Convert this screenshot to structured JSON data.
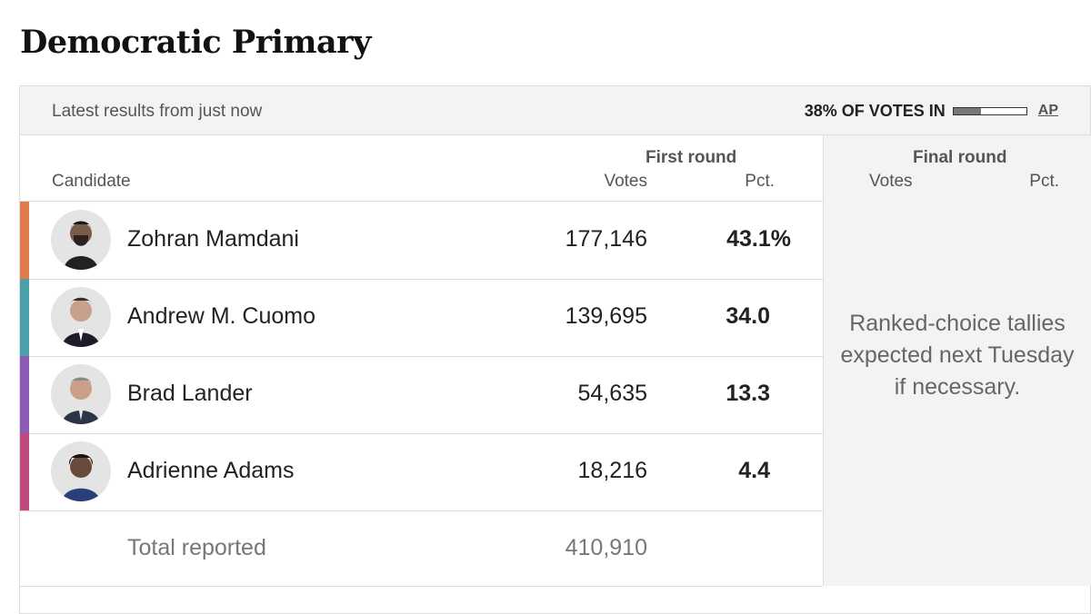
{
  "title": "Democratic Primary",
  "status": {
    "latest": "Latest results from just now",
    "votes_in": "38% OF VOTES IN",
    "votes_in_fraction": 0.38,
    "source": "AP"
  },
  "headers": {
    "candidate": "Candidate",
    "first_round": "First round",
    "final_round": "Final round",
    "votes": "Votes",
    "pct": "Pct."
  },
  "candidates": [
    {
      "name": "Zohran Mamdani",
      "votes": "177,146",
      "pct": "43.1%",
      "color": "#e07b4a"
    },
    {
      "name": "Andrew M. Cuomo",
      "votes": "139,695",
      "pct": "34.0",
      "color": "#4a9fa8"
    },
    {
      "name": "Brad Lander",
      "votes": "54,635",
      "pct": "13.3",
      "color": "#8e5bb8"
    },
    {
      "name": "Adrienne Adams",
      "votes": "18,216",
      "pct": "4.4",
      "color": "#c04a7e"
    }
  ],
  "total": {
    "label": "Total reported",
    "votes": "410,910"
  },
  "final_note": "Ranked-choice tallies expected next Tuesday if necessary."
}
